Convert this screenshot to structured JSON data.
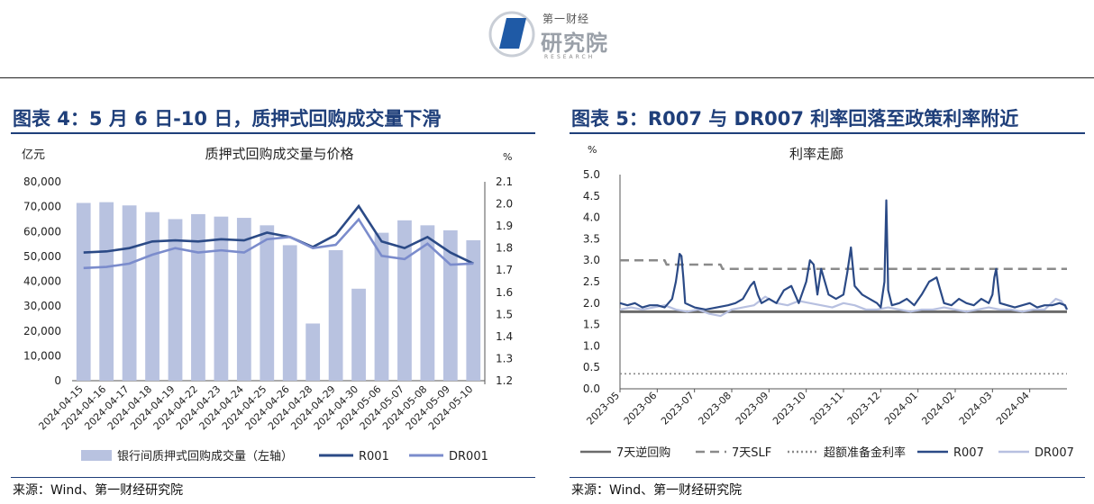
{
  "header": {
    "logo_top": "第一财经",
    "logo_main": "研究院",
    "logo_sub": "RESEARCH"
  },
  "left_panel": {
    "title": "图表 4：5 月 6 日-10 日，质押式回购成交量下滑",
    "source": "来源：Wind、第一财经研究院"
  },
  "right_panel": {
    "title": "图表 5：R007 与 DR007 利率回落至政策利率附近",
    "source": "来源：Wind、第一财经研究院"
  },
  "chart_data": [
    {
      "type": "bar",
      "title": "质押式回购成交量与价格",
      "ylabel": "亿元",
      "y2label": "%",
      "ylim": [
        0,
        80000
      ],
      "y2lim": [
        1.2,
        2.1
      ],
      "yticks": [
        "0",
        "10,000",
        "20,000",
        "30,000",
        "40,000",
        "50,000",
        "60,000",
        "70,000",
        "80,000"
      ],
      "y2ticks": [
        "1.2",
        "1.3",
        "1.4",
        "1.5",
        "1.6",
        "1.7",
        "1.8",
        "1.9",
        "2.0",
        "2.1"
      ],
      "categories": [
        "2024-04-15",
        "2024-04-16",
        "2024-04-17",
        "2024-04-18",
        "2024-04-19",
        "2024-04-22",
        "2024-04-23",
        "2024-04-24",
        "2024-04-25",
        "2024-04-26",
        "2024-04-28",
        "2024-04-29",
        "2024-04-30",
        "2024-05-06",
        "2024-05-07",
        "2024-05-08",
        "2024-05-09",
        "2024-05-10"
      ],
      "legend_position": "bottom",
      "series": [
        {
          "name": "银行间质押式回购成交量（左轴）",
          "kind": "bar",
          "axis": "left",
          "color": "#b8c2e0",
          "values": [
            71500,
            71800,
            70500,
            67800,
            65000,
            67000,
            66000,
            65500,
            62500,
            54500,
            23000,
            52500,
            37000,
            59500,
            64500,
            62500,
            60500,
            56500
          ]
        },
        {
          "name": "R001",
          "kind": "line",
          "axis": "right",
          "color": "#2b4a86",
          "values": [
            1.78,
            1.785,
            1.8,
            1.83,
            1.835,
            1.83,
            1.84,
            1.835,
            1.87,
            1.85,
            1.805,
            1.86,
            1.99,
            1.83,
            1.8,
            1.85,
            1.78,
            1.73
          ]
        },
        {
          "name": "DR001",
          "kind": "line",
          "axis": "right",
          "color": "#7b8ccc",
          "values": [
            1.71,
            1.715,
            1.73,
            1.77,
            1.8,
            1.78,
            1.79,
            1.78,
            1.84,
            1.85,
            1.8,
            1.815,
            1.93,
            1.765,
            1.75,
            1.82,
            1.725,
            1.73
          ]
        }
      ]
    },
    {
      "type": "line",
      "title": "利率走廊",
      "ylabel": "%",
      "ylim": [
        0,
        5
      ],
      "yticks": [
        "0.0",
        "0.5",
        "1.0",
        "1.5",
        "2.0",
        "2.5",
        "3.0",
        "3.5",
        "4.0",
        "4.5",
        "5.0"
      ],
      "categories": [
        "2023-05",
        "2023-06",
        "2023-07",
        "2023-08",
        "2023-09",
        "2023-10",
        "2023-11",
        "2023-12",
        "2024-01",
        "2024-02",
        "2024-03",
        "2024-04"
      ],
      "legend_position": "bottom",
      "series": [
        {
          "name": "7天逆回购",
          "style": "solid",
          "color": "#6b6b6b",
          "x": [
            0,
            0.6,
            0.62,
            12
          ],
          "values": [
            1.8,
            1.8,
            1.8,
            1.8
          ]
        },
        {
          "name": "7天SLF",
          "style": "dashed",
          "color": "#8a8a8a",
          "x": [
            0,
            1.2,
            1.25,
            2.7,
            2.75,
            12
          ],
          "values": [
            3.0,
            3.0,
            2.9,
            2.9,
            2.8,
            2.8
          ]
        },
        {
          "name": "超额准备金利率",
          "style": "dotted",
          "color": "#8a8a8a",
          "x": [
            0,
            12
          ],
          "values": [
            0.35,
            0.35
          ]
        },
        {
          "name": "R007",
          "style": "solid",
          "color": "#2b4a86",
          "x": [
            0,
            0.2,
            0.4,
            0.6,
            0.8,
            1.0,
            1.2,
            1.4,
            1.5,
            1.55,
            1.6,
            1.65,
            1.7,
            1.75,
            2.0,
            2.3,
            2.6,
            2.9,
            3.1,
            3.3,
            3.5,
            3.6,
            3.7,
            3.8,
            4.0,
            4.2,
            4.4,
            4.6,
            4.8,
            5.0,
            5.1,
            5.2,
            5.3,
            5.4,
            5.6,
            5.8,
            6.0,
            6.1,
            6.2,
            6.3,
            6.5,
            6.7,
            6.9,
            7.0,
            7.1,
            7.15,
            7.2,
            7.3,
            7.5,
            7.7,
            7.9,
            8.1,
            8.3,
            8.5,
            8.7,
            8.9,
            9.1,
            9.3,
            9.5,
            9.7,
            9.9,
            10.0,
            10.05,
            10.1,
            10.2,
            10.4,
            10.6,
            10.8,
            11.0,
            11.2,
            11.4,
            11.6,
            11.8,
            11.95,
            12.0
          ],
          "values": [
            2.0,
            1.95,
            2.0,
            1.9,
            1.95,
            1.95,
            1.9,
            2.1,
            2.5,
            2.8,
            3.15,
            3.1,
            2.6,
            2.0,
            1.9,
            1.85,
            1.9,
            1.95,
            2.0,
            2.1,
            2.4,
            2.5,
            2.2,
            2.0,
            2.1,
            2.0,
            2.3,
            2.4,
            2.0,
            2.5,
            3.0,
            2.9,
            2.2,
            2.8,
            2.2,
            2.1,
            2.2,
            2.7,
            3.3,
            2.4,
            2.2,
            2.1,
            2.0,
            1.9,
            2.5,
            4.4,
            2.3,
            1.95,
            2.0,
            2.1,
            1.95,
            2.2,
            2.5,
            2.6,
            2.0,
            1.95,
            2.1,
            2.0,
            1.95,
            2.1,
            2.0,
            2.2,
            2.6,
            2.8,
            2.0,
            1.95,
            1.9,
            1.95,
            2.0,
            1.9,
            1.95,
            1.95,
            2.0,
            1.95,
            1.85
          ]
        },
        {
          "name": "DR007",
          "style": "solid",
          "color": "#b7c0e0",
          "x": [
            0,
            0.3,
            0.6,
            0.9,
            1.2,
            1.5,
            1.8,
            2.1,
            2.4,
            2.7,
            3.0,
            3.3,
            3.6,
            3.9,
            4.2,
            4.5,
            4.8,
            5.1,
            5.4,
            5.7,
            6.0,
            6.3,
            6.6,
            6.9,
            7.2,
            7.5,
            7.8,
            8.1,
            8.4,
            8.7,
            9.0,
            9.3,
            9.6,
            9.9,
            10.2,
            10.5,
            10.8,
            11.1,
            11.4,
            11.7,
            11.85,
            12.0
          ],
          "values": [
            1.85,
            1.9,
            1.85,
            1.9,
            1.95,
            1.85,
            1.8,
            1.85,
            1.75,
            1.7,
            1.85,
            1.9,
            1.95,
            2.15,
            2.0,
            1.95,
            2.05,
            2.0,
            1.95,
            1.9,
            2.0,
            1.95,
            1.85,
            1.85,
            1.9,
            1.85,
            1.8,
            1.85,
            1.85,
            1.9,
            1.85,
            1.8,
            1.85,
            1.9,
            1.85,
            1.85,
            1.8,
            1.85,
            1.85,
            2.1,
            2.05,
            1.85
          ]
        }
      ]
    }
  ]
}
